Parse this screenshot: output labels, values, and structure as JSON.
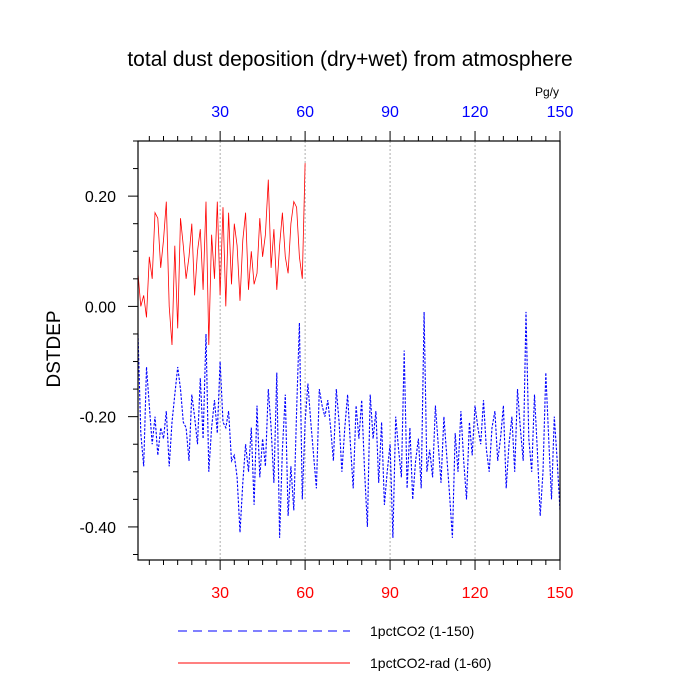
{
  "chart_data": {
    "type": "line",
    "title": "total dust deposition (dry+wet) from atmosphere",
    "ylabel": "DSTDEP",
    "top_axis_unit": "Pg/y",
    "xlim": [
      1,
      150
    ],
    "ylim": [
      -0.46,
      0.3
    ],
    "x_ticks": [
      "30",
      "60",
      "90",
      "120",
      "150"
    ],
    "top_ticks": [
      "30",
      "60",
      "90",
      "120",
      "150"
    ],
    "y_ticks": [
      "0.20",
      "0.00",
      "-0.20",
      "-0.40"
    ],
    "y_tick_values": [
      0.2,
      0.0,
      -0.2,
      -0.4
    ],
    "x_grid": [
      30,
      60,
      90,
      120
    ],
    "colors": {
      "bottom_ticks": "#ff0000",
      "top_ticks": "#0000ff"
    },
    "series": [
      {
        "name": "1pctCO2 (1-150)",
        "color": "#0000ff",
        "dash": "dashed",
        "values": [
          -0.05,
          -0.23,
          -0.29,
          -0.11,
          -0.18,
          -0.25,
          -0.2,
          -0.27,
          -0.22,
          -0.24,
          -0.19,
          -0.29,
          -0.21,
          -0.16,
          -0.11,
          -0.15,
          -0.21,
          -0.22,
          -0.28,
          -0.16,
          -0.2,
          -0.25,
          -0.13,
          -0.24,
          -0.05,
          -0.3,
          -0.22,
          -0.17,
          -0.23,
          -0.1,
          -0.21,
          -0.22,
          -0.19,
          -0.28,
          -0.27,
          -0.31,
          -0.41,
          -0.32,
          -0.25,
          -0.3,
          -0.22,
          -0.36,
          -0.18,
          -0.31,
          -0.24,
          -0.29,
          -0.15,
          -0.22,
          -0.32,
          -0.12,
          -0.42,
          -0.26,
          -0.16,
          -0.38,
          -0.29,
          -0.37,
          -0.19,
          -0.03,
          -0.35,
          -0.21,
          -0.14,
          -0.21,
          -0.27,
          -0.33,
          -0.15,
          -0.18,
          -0.2,
          -0.17,
          -0.22,
          -0.28,
          -0.15,
          -0.21,
          -0.3,
          -0.22,
          -0.16,
          -0.25,
          -0.33,
          -0.18,
          -0.24,
          -0.17,
          -0.3,
          -0.4,
          -0.16,
          -0.24,
          -0.19,
          -0.32,
          -0.21,
          -0.36,
          -0.3,
          -0.25,
          -0.42,
          -0.2,
          -0.26,
          -0.31,
          -0.08,
          -0.33,
          -0.22,
          -0.35,
          -0.28,
          -0.24,
          -0.33,
          -0.01,
          -0.3,
          -0.26,
          -0.31,
          -0.18,
          -0.25,
          -0.32,
          -0.2,
          -0.27,
          -0.34,
          -0.42,
          -0.23,
          -0.3,
          -0.19,
          -0.28,
          -0.35,
          -0.21,
          -0.27,
          -0.18,
          -0.22,
          -0.25,
          -0.17,
          -0.26,
          -0.3,
          -0.22,
          -0.19,
          -0.28,
          -0.24,
          -0.18,
          -0.33,
          -0.25,
          -0.2,
          -0.3,
          -0.15,
          -0.22,
          -0.28,
          -0.01,
          -0.24,
          -0.3,
          -0.16,
          -0.26,
          -0.38,
          -0.3,
          -0.12,
          -0.24,
          -0.35,
          -0.2,
          -0.28,
          -0.37
        ]
      },
      {
        "name": "1pctCO2-rad (1-60)",
        "color": "#ff0000",
        "dash": "solid",
        "values": [
          0.06,
          0.0,
          0.02,
          -0.02,
          0.09,
          0.05,
          0.17,
          0.16,
          0.07,
          0.12,
          0.19,
          0.0,
          -0.07,
          0.11,
          -0.04,
          0.16,
          0.11,
          0.05,
          0.09,
          0.15,
          0.02,
          0.1,
          0.14,
          0.03,
          0.19,
          -0.07,
          0.13,
          0.05,
          0.19,
          0.02,
          0.18,
          0.0,
          0.17,
          0.04,
          0.15,
          0.11,
          0.01,
          0.12,
          0.17,
          0.03,
          0.1,
          0.04,
          0.06,
          0.16,
          0.09,
          0.13,
          0.23,
          0.07,
          0.14,
          0.03,
          0.11,
          0.17,
          0.09,
          0.06,
          0.15,
          0.19,
          0.18,
          0.09,
          0.05,
          0.26
        ]
      }
    ],
    "legend": {
      "placement": "bottom"
    }
  }
}
